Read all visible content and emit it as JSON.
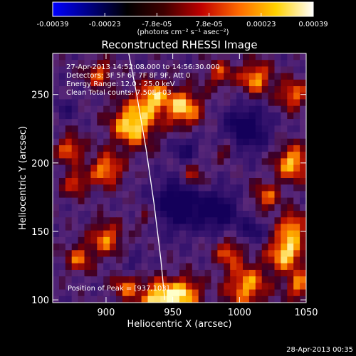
{
  "colorbar": {
    "tick_labels": [
      "-0.00039",
      "-0.00023",
      "-7.8e-05",
      "7.8e-05",
      "0.00023",
      "0.00039"
    ],
    "unit_label": "(photons cm⁻² s⁻¹ asec⁻²)",
    "stops": [
      "#0000ff",
      "#000080",
      "#000000",
      "#400000",
      "#c00000",
      "#ff6a00",
      "#ffd200",
      "#ffffff"
    ]
  },
  "plot": {
    "title": "Reconstructed RHESSI Image",
    "xlabel": "Heliocentric X (arcsec)",
    "ylabel": "Heliocentric Y (arcsec)",
    "x_ticks": [
      "900",
      "950",
      "1000",
      "1050"
    ],
    "y_ticks": [
      "100",
      "150",
      "200",
      "250"
    ],
    "xlim": [
      860,
      1050
    ],
    "ylim": [
      98,
      280
    ],
    "info_lines": [
      "27-Apr-2013 14:52:08.000 to 14:56:30.000",
      "Detectors: 3F 5F 6F 7F 8F 9F, Att 0",
      "Energy Range: 12.0 - 25.0 keV",
      "Clean     Total counts: 7.50E+03"
    ],
    "peak_label": "Position of Peak = [937,103]",
    "limb_curve": [
      [
        917,
        280
      ],
      [
        923,
        250
      ],
      [
        930,
        210
      ],
      [
        936,
        170
      ],
      [
        941,
        130
      ],
      [
        944,
        100
      ]
    ]
  },
  "footer": {
    "timestamp": "28-Apr-2013 00:35"
  },
  "image_map": {
    "grid_cols": 40,
    "grid_rows": 38,
    "blobs": [
      [
        920,
        228,
        16,
        1.25
      ],
      [
        895,
        265,
        10,
        0.8
      ],
      [
        873,
        210,
        10,
        0.9
      ],
      [
        877,
        185,
        9,
        0.8
      ],
      [
        900,
        195,
        12,
        1.0
      ],
      [
        935,
        248,
        12,
        1.0
      ],
      [
        958,
        240,
        14,
        1.1
      ],
      [
        985,
        265,
        10,
        0.7
      ],
      [
        1012,
        262,
        12,
        1.0
      ],
      [
        1040,
        250,
        11,
        0.9
      ],
      [
        1040,
        200,
        13,
        1.1
      ],
      [
        1020,
        175,
        10,
        0.8
      ],
      [
        1040,
        155,
        10,
        0.9
      ],
      [
        1035,
        135,
        14,
        1.2
      ],
      [
        1045,
        110,
        10,
        0.9
      ],
      [
        1005,
        110,
        16,
        1.0
      ],
      [
        992,
        135,
        10,
        0.8
      ],
      [
        960,
        105,
        12,
        1.0
      ],
      [
        940,
        100,
        14,
        1.3
      ],
      [
        915,
        110,
        10,
        0.8
      ],
      [
        900,
        145,
        12,
        0.9
      ],
      [
        880,
        130,
        10,
        0.8
      ],
      [
        965,
        190,
        10,
        0.7
      ],
      [
        990,
        210,
        8,
        0.5
      ],
      [
        930,
        160,
        8,
        0.4
      ]
    ],
    "voids": [
      [
        955,
        170,
        18,
        1.1
      ],
      [
        985,
        165,
        14,
        0.9
      ],
      [
        1005,
        225,
        16,
        1.0
      ],
      [
        960,
        210,
        10,
        0.6
      ],
      [
        1010,
        150,
        10,
        0.6
      ],
      [
        920,
        125,
        8,
        0.4
      ],
      [
        870,
        240,
        8,
        0.4
      ]
    ]
  }
}
